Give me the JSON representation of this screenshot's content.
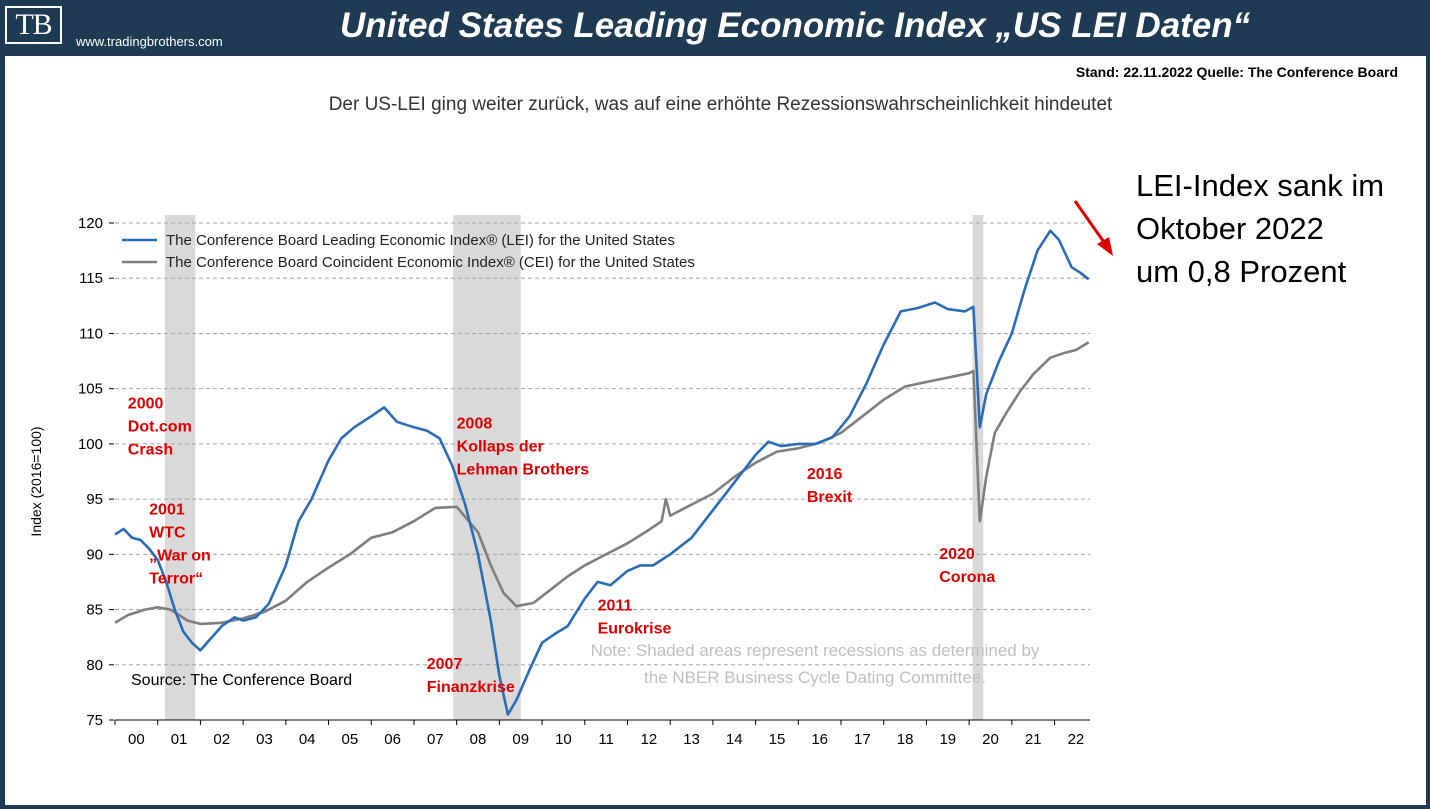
{
  "header": {
    "logo_text": "TB",
    "logo_url": "www.tradingbrothers.com",
    "title": "United States Leading Economic Index „US LEI Daten“"
  },
  "stand_text": "Stand: 22.11.2022   Quelle: The Conference Board",
  "subtitle": "Der US-LEI ging weiter zurück, was auf eine erhöhte Rezessionswahrscheinlichkeit hindeutet",
  "callout": {
    "lines": [
      "LEI-Index sank im",
      "Oktober 2022",
      "um 0,8 Prozent"
    ]
  },
  "colors": {
    "lei": "#2a6db5",
    "cei": "#7f7f7f",
    "recession": "#d9d9d9",
    "annotation": "#e00000",
    "arrow": "#e00000"
  },
  "chart_data": {
    "type": "line",
    "ylabel": "Index (2016=100)",
    "ylim": [
      75,
      120
    ],
    "yticks": [
      75,
      80,
      85,
      90,
      95,
      100,
      105,
      110,
      115,
      120
    ],
    "xlim": [
      2000,
      2022.83
    ],
    "xticks": [
      {
        "label": "00",
        "value": 2000.5
      },
      {
        "label": "01",
        "value": 2001.5
      },
      {
        "label": "02",
        "value": 2002.5
      },
      {
        "label": "03",
        "value": 2003.5
      },
      {
        "label": "04",
        "value": 2004.5
      },
      {
        "label": "05",
        "value": 2005.5
      },
      {
        "label": "06",
        "value": 2006.5
      },
      {
        "label": "07",
        "value": 2007.5
      },
      {
        "label": "08",
        "value": 2008.5
      },
      {
        "label": "09",
        "value": 2009.5
      },
      {
        "label": "10",
        "value": 2010.5
      },
      {
        "label": "11",
        "value": 2011.5
      },
      {
        "label": "12",
        "value": 2012.5
      },
      {
        "label": "13",
        "value": 2013.5
      },
      {
        "label": "14",
        "value": 2014.5
      },
      {
        "label": "15",
        "value": 2015.5
      },
      {
        "label": "16",
        "value": 2016.5
      },
      {
        "label": "17",
        "value": 2017.5
      },
      {
        "label": "18",
        "value": 2018.5
      },
      {
        "label": "19",
        "value": 2019.5
      },
      {
        "label": "20",
        "value": 2020.5
      },
      {
        "label": "21",
        "value": 2021.5
      },
      {
        "label": "22",
        "value": 2022.5
      }
    ],
    "grid": "horizontal-dashed",
    "legend_position": "top-left",
    "recessions": [
      [
        2001.17,
        2001.88
      ],
      [
        2007.92,
        2009.5
      ],
      [
        2020.08,
        2020.33
      ]
    ],
    "series": [
      {
        "name": "The Conference Board Leading Economic Index® (LEI) for the United States",
        "key": "lei",
        "points": [
          [
            2000.0,
            91.8
          ],
          [
            2000.2,
            92.3
          ],
          [
            2000.4,
            91.5
          ],
          [
            2000.6,
            91.3
          ],
          [
            2000.8,
            90.5
          ],
          [
            2001.0,
            89.5
          ],
          [
            2001.2,
            87.5
          ],
          [
            2001.4,
            85.0
          ],
          [
            2001.6,
            83.0
          ],
          [
            2001.8,
            82.0
          ],
          [
            2002.0,
            81.3
          ],
          [
            2002.2,
            82.2
          ],
          [
            2002.5,
            83.5
          ],
          [
            2002.8,
            84.3
          ],
          [
            2003.0,
            84.0
          ],
          [
            2003.3,
            84.3
          ],
          [
            2003.6,
            85.5
          ],
          [
            2004.0,
            89.0
          ],
          [
            2004.3,
            93.0
          ],
          [
            2004.6,
            95.0
          ],
          [
            2005.0,
            98.5
          ],
          [
            2005.3,
            100.5
          ],
          [
            2005.6,
            101.5
          ],
          [
            2006.0,
            102.5
          ],
          [
            2006.3,
            103.3
          ],
          [
            2006.6,
            102.0
          ],
          [
            2007.0,
            101.5
          ],
          [
            2007.3,
            101.2
          ],
          [
            2007.6,
            100.5
          ],
          [
            2007.9,
            98.0
          ],
          [
            2008.2,
            94.5
          ],
          [
            2008.5,
            90.0
          ],
          [
            2008.8,
            84.0
          ],
          [
            2009.0,
            79.0
          ],
          [
            2009.2,
            75.5
          ],
          [
            2009.4,
            76.8
          ],
          [
            2009.7,
            79.5
          ],
          [
            2010.0,
            82.0
          ],
          [
            2010.3,
            82.8
          ],
          [
            2010.6,
            83.5
          ],
          [
            2011.0,
            86.0
          ],
          [
            2011.3,
            87.5
          ],
          [
            2011.6,
            87.2
          ],
          [
            2012.0,
            88.5
          ],
          [
            2012.3,
            89.0
          ],
          [
            2012.6,
            89.0
          ],
          [
            2013.0,
            90.0
          ],
          [
            2013.5,
            91.5
          ],
          [
            2014.0,
            94.0
          ],
          [
            2014.5,
            96.5
          ],
          [
            2015.0,
            99.0
          ],
          [
            2015.3,
            100.2
          ],
          [
            2015.6,
            99.8
          ],
          [
            2016.0,
            100.0
          ],
          [
            2016.4,
            100.0
          ],
          [
            2016.8,
            100.6
          ],
          [
            2017.2,
            102.5
          ],
          [
            2017.6,
            105.5
          ],
          [
            2018.0,
            109.0
          ],
          [
            2018.4,
            112.0
          ],
          [
            2018.8,
            112.3
          ],
          [
            2019.2,
            112.8
          ],
          [
            2019.5,
            112.2
          ],
          [
            2019.9,
            112.0
          ],
          [
            2020.1,
            112.4
          ],
          [
            2020.25,
            101.5
          ],
          [
            2020.4,
            104.5
          ],
          [
            2020.7,
            107.5
          ],
          [
            2021.0,
            110.0
          ],
          [
            2021.3,
            114.0
          ],
          [
            2021.6,
            117.5
          ],
          [
            2021.9,
            119.3
          ],
          [
            2022.1,
            118.5
          ],
          [
            2022.4,
            116.0
          ],
          [
            2022.6,
            115.5
          ],
          [
            2022.8,
            114.9
          ]
        ]
      },
      {
        "name": "The Conference Board Coincident Economic Index® (CEI) for the United States",
        "key": "cei",
        "points": [
          [
            2000.0,
            83.8
          ],
          [
            2000.3,
            84.5
          ],
          [
            2000.7,
            85.0
          ],
          [
            2001.0,
            85.2
          ],
          [
            2001.3,
            85.0
          ],
          [
            2001.7,
            84.0
          ],
          [
            2002.0,
            83.7
          ],
          [
            2002.5,
            83.8
          ],
          [
            2003.0,
            84.2
          ],
          [
            2003.5,
            84.8
          ],
          [
            2004.0,
            85.8
          ],
          [
            2004.5,
            87.5
          ],
          [
            2005.0,
            88.8
          ],
          [
            2005.5,
            90.0
          ],
          [
            2006.0,
            91.5
          ],
          [
            2006.5,
            92.0
          ],
          [
            2007.0,
            93.0
          ],
          [
            2007.5,
            94.2
          ],
          [
            2008.0,
            94.3
          ],
          [
            2008.5,
            92.0
          ],
          [
            2008.8,
            89.0
          ],
          [
            2009.1,
            86.5
          ],
          [
            2009.4,
            85.3
          ],
          [
            2009.8,
            85.6
          ],
          [
            2010.2,
            86.8
          ],
          [
            2010.6,
            88.0
          ],
          [
            2011.0,
            89.0
          ],
          [
            2011.5,
            90.0
          ],
          [
            2012.0,
            91.0
          ],
          [
            2012.5,
            92.2
          ],
          [
            2012.8,
            93.0
          ],
          [
            2012.9,
            95.0
          ],
          [
            2013.0,
            93.5
          ],
          [
            2013.5,
            94.5
          ],
          [
            2014.0,
            95.5
          ],
          [
            2014.5,
            97.0
          ],
          [
            2015.0,
            98.3
          ],
          [
            2015.5,
            99.3
          ],
          [
            2016.0,
            99.6
          ],
          [
            2016.5,
            100.1
          ],
          [
            2017.0,
            101.0
          ],
          [
            2017.5,
            102.5
          ],
          [
            2018.0,
            104.0
          ],
          [
            2018.5,
            105.2
          ],
          [
            2019.0,
            105.6
          ],
          [
            2019.5,
            106.0
          ],
          [
            2020.0,
            106.4
          ],
          [
            2020.1,
            106.6
          ],
          [
            2020.25,
            93.0
          ],
          [
            2020.4,
            97.0
          ],
          [
            2020.6,
            101.0
          ],
          [
            2020.9,
            103.0
          ],
          [
            2021.2,
            104.8
          ],
          [
            2021.5,
            106.3
          ],
          [
            2021.9,
            107.8
          ],
          [
            2022.2,
            108.2
          ],
          [
            2022.5,
            108.5
          ],
          [
            2022.8,
            109.2
          ]
        ]
      }
    ],
    "annotations": [
      {
        "lines": [
          "2000",
          "Dot.com",
          "Crash"
        ],
        "x": 2000.3,
        "y": 103.2
      },
      {
        "lines": [
          "2001",
          "WTC",
          "„War on",
          "Terror“"
        ],
        "x": 2000.8,
        "y": 93.6
      },
      {
        "lines": [
          "2008",
          "Kollaps der",
          "Lehman Brothers"
        ],
        "x": 2008.0,
        "y": 101.4
      },
      {
        "lines": [
          "2007",
          "Finanzkrise"
        ],
        "x": 2007.3,
        "y": 79.6
      },
      {
        "lines": [
          "2011",
          "Eurokrise"
        ],
        "x": 2011.3,
        "y": 84.9
      },
      {
        "lines": [
          "2016",
          "Brexit"
        ],
        "x": 2016.2,
        "y": 96.8
      },
      {
        "lines": [
          "2020",
          "Corona"
        ],
        "x": 2019.3,
        "y": 89.6
      }
    ],
    "source": "Source: The Conference Board",
    "note_lines": [
      "Note: Shaded areas represent recessions as determined by",
      "the NBER Business Cycle Dating Committee."
    ]
  }
}
